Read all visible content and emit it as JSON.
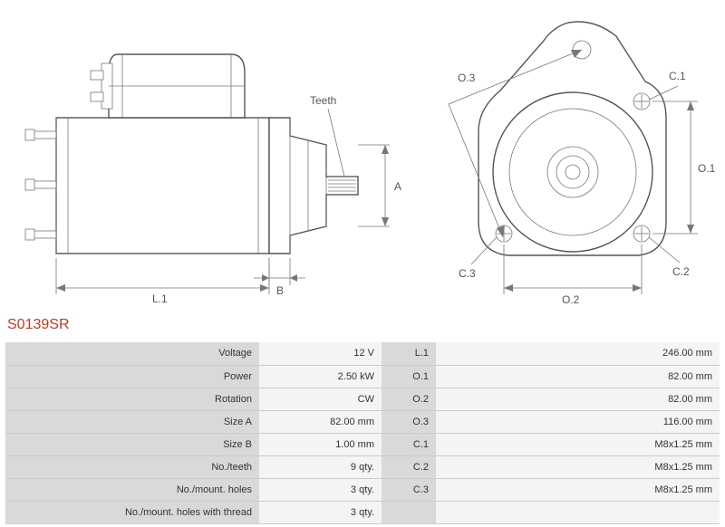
{
  "part_number": "S0139SR",
  "diagram": {
    "labels": {
      "teeth": "Teeth",
      "A": "A",
      "B": "B",
      "L1": "L.1",
      "O1": "O.1",
      "O2": "O.2",
      "O3": "O.3",
      "C1": "C.1",
      "C2": "C.2",
      "C3": "C.3"
    },
    "stroke_color": "#555555",
    "dim_color": "#777777",
    "text_color": "#555555",
    "background_color": "#ffffff"
  },
  "specs": {
    "left": [
      {
        "label": "Voltage",
        "value": "12 V"
      },
      {
        "label": "Power",
        "value": "2.50 kW"
      },
      {
        "label": "Rotation",
        "value": "CW"
      },
      {
        "label": "Size A",
        "value": "82.00 mm"
      },
      {
        "label": "Size B",
        "value": "1.00 mm"
      },
      {
        "label": "No./teeth",
        "value": "9 qty."
      },
      {
        "label": "No./mount. holes",
        "value": "3 qty."
      },
      {
        "label": "No./mount. holes with thread",
        "value": "3 qty."
      }
    ],
    "right": [
      {
        "label": "L.1",
        "value": "246.00 mm"
      },
      {
        "label": "O.1",
        "value": "82.00 mm"
      },
      {
        "label": "O.2",
        "value": "82.00 mm"
      },
      {
        "label": "O.3",
        "value": "116.00 mm"
      },
      {
        "label": "C.1",
        "value": "M8x1.25 mm"
      },
      {
        "label": "C.2",
        "value": "M8x1.25 mm"
      },
      {
        "label": "C.3",
        "value": "M8x1.25 mm"
      },
      {
        "label": "",
        "value": ""
      }
    ]
  },
  "styles": {
    "part_number_color": "#c0392b",
    "label_bg": "#d9d9d9",
    "value_bg": "#f4f4f4",
    "border_color": "#cccccc",
    "font_size_table": 11,
    "font_size_part": 16
  }
}
